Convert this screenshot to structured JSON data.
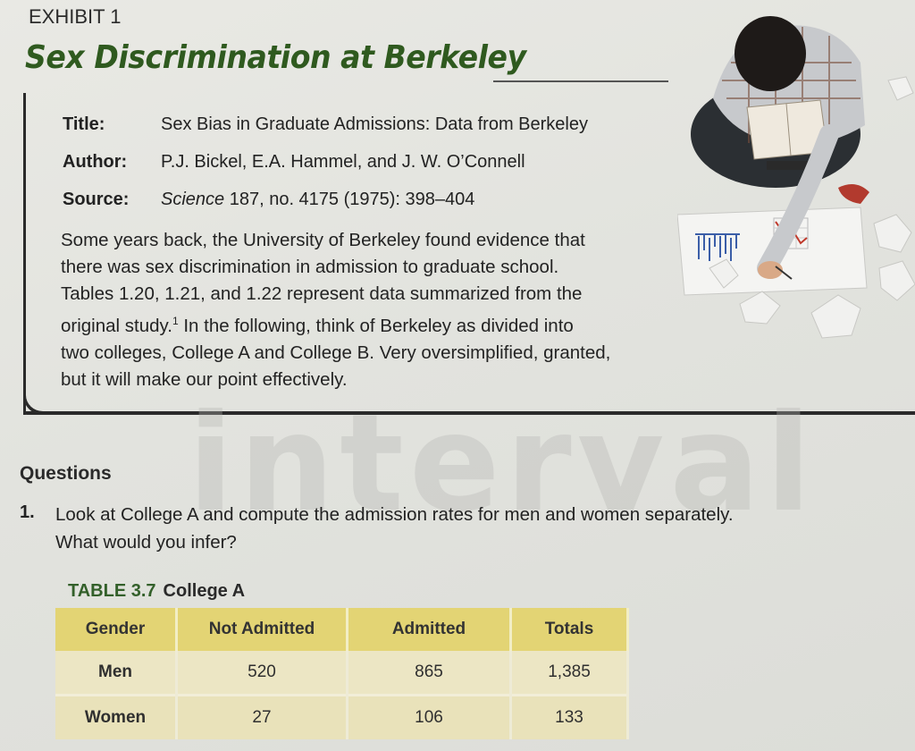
{
  "exhibit": {
    "label": "EXHIBIT 1",
    "title": "Sex Discrimination at Berkeley"
  },
  "reference": {
    "title_label": "Title:",
    "title_value": "Sex Bias in Graduate Admissions: Data from Berkeley",
    "author_label": "Author:",
    "author_value": "P.J. Bickel, E.A. Hammel, and J. W. O’Connell",
    "source_label": "Source:",
    "source_journal": "Science",
    "source_rest": " 187, no. 4175 (1975): 398–404"
  },
  "intro": {
    "line1": "Some years back, the University of Berkeley found evidence that",
    "line2": "there was sex discrimination in admission to graduate school.",
    "line3": "Tables 1.20, 1.21, and 1.22 represent data summarized from the",
    "line4a": "original study.",
    "footnote": "1",
    "line4b": " In the following, think of Berkeley as divided into",
    "line5": "two colleges, College A and College B. Very oversimplified, granted,",
    "line6": "but it will make our point effectively."
  },
  "questions": {
    "heading": "Questions",
    "q1_number": "1.",
    "q1_line1": "Look at College A and compute the admission rates for men and women separately.",
    "q1_line2": "What would you infer?"
  },
  "table": {
    "caption_number": "TABLE 3.7",
    "caption_name": "College A",
    "headers": [
      "Gender",
      "Not Admitted",
      "Admitted",
      "Totals"
    ],
    "rows": [
      [
        "Men",
        "520",
        "865",
        "1,385"
      ],
      [
        "Women",
        "27",
        "106",
        "133"
      ]
    ]
  },
  "colors": {
    "title_green": "#2f5a1f",
    "table_header": "#e3d474",
    "table_row": "#ece6c4"
  },
  "illustration": {
    "icon": "student-studying-illustration"
  }
}
